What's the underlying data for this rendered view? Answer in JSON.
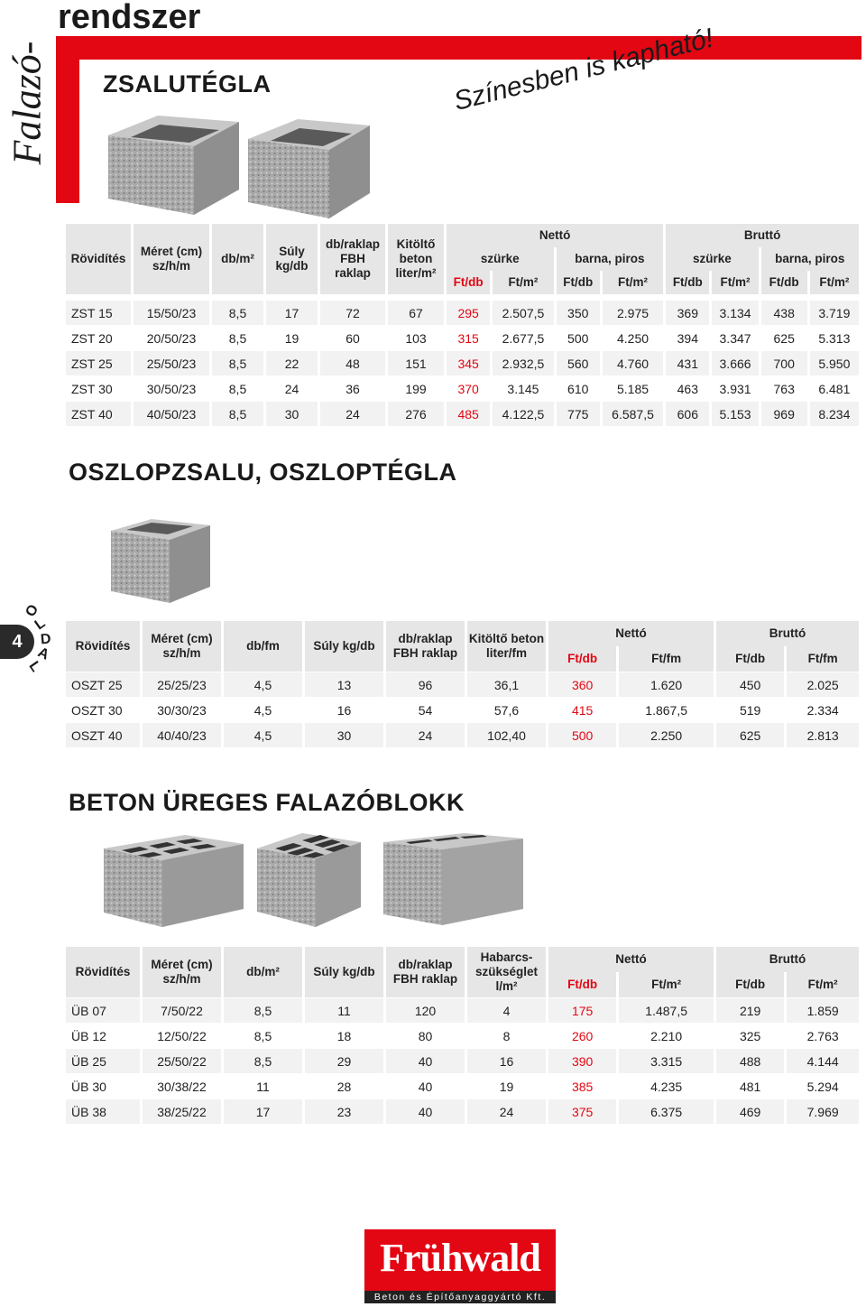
{
  "header": {
    "side_title": "Falazó-",
    "title": "rendszer",
    "section1_title": "ZSALUTÉGLA",
    "slogan": "Színesben is kapható!"
  },
  "page_badge": {
    "number": "4",
    "label": [
      "O",
      "L",
      "D",
      "A",
      "L"
    ]
  },
  "zst": {
    "headers": {
      "abbr": "Rövidítés",
      "size": "Méret (cm) sz/h/m",
      "db_m2": "db/m²",
      "weight": "Súly kg/db",
      "pallet": "db/raklap FBH raklap",
      "fill": "Kitöltő beton liter/m²",
      "netto": "Nettó",
      "brutto": "Bruttó",
      "grey": "szürke",
      "brown": "barna, piros",
      "ftdb": "Ft/db",
      "ftm2": "Ft/m²"
    },
    "rows": [
      [
        "ZST 15",
        "15/50/23",
        "8,5",
        "17",
        "72",
        "67",
        "295",
        "2.507,5",
        "350",
        "2.975",
        "369",
        "3.134",
        "438",
        "3.719"
      ],
      [
        "ZST 20",
        "20/50/23",
        "8,5",
        "19",
        "60",
        "103",
        "315",
        "2.677,5",
        "500",
        "4.250",
        "394",
        "3.347",
        "625",
        "5.313"
      ],
      [
        "ZST 25",
        "25/50/23",
        "8,5",
        "22",
        "48",
        "151",
        "345",
        "2.932,5",
        "560",
        "4.760",
        "431",
        "3.666",
        "700",
        "5.950"
      ],
      [
        "ZST 30",
        "30/50/23",
        "8,5",
        "24",
        "36",
        "199",
        "370",
        "3.145",
        "610",
        "5.185",
        "463",
        "3.931",
        "763",
        "6.481"
      ],
      [
        "ZST 40",
        "40/50/23",
        "8,5",
        "30",
        "24",
        "276",
        "485",
        "4.122,5",
        "775",
        "6.587,5",
        "606",
        "5.153",
        "969",
        "8.234"
      ]
    ]
  },
  "oszt": {
    "title": "OSZLOPZSALU, OSZLOPTÉGLA",
    "headers": {
      "abbr": "Rövidítés",
      "size": "Méret (cm) sz/h/m",
      "db_fm": "db/fm",
      "weight": "Súly kg/db",
      "pallet": "db/raklap FBH raklap",
      "fill": "Kitöltő beton liter/fm",
      "netto": "Nettó",
      "brutto": "Bruttó",
      "ftdb": "Ft/db",
      "ftfm": "Ft/fm"
    },
    "rows": [
      [
        "OSZT 25",
        "25/25/23",
        "4,5",
        "13",
        "96",
        "36,1",
        "360",
        "1.620",
        "450",
        "2.025"
      ],
      [
        "OSZT 30",
        "30/30/23",
        "4,5",
        "16",
        "54",
        "57,6",
        "415",
        "1.867,5",
        "519",
        "2.334"
      ],
      [
        "OSZT 40",
        "40/40/23",
        "4,5",
        "30",
        "24",
        "102,40",
        "500",
        "2.250",
        "625",
        "2.813"
      ]
    ]
  },
  "ub": {
    "title": "BETON ÜREGES FALAZÓBLOKK",
    "headers": {
      "abbr": "Rövidítés",
      "size": "Méret (cm) sz/h/m",
      "db_m2": "db/m²",
      "weight": "Súly kg/db",
      "pallet": "db/raklap FBH raklap",
      "mortar": "Habarcs- szükséglet l/m²",
      "netto": "Nettó",
      "brutto": "Bruttó",
      "ftdb": "Ft/db",
      "ftm2": "Ft/m²"
    },
    "rows": [
      [
        "ÜB 07",
        "7/50/22",
        "8,5",
        "11",
        "120",
        "4",
        "175",
        "1.487,5",
        "219",
        "1.859"
      ],
      [
        "ÜB 12",
        "12/50/22",
        "8,5",
        "18",
        "80",
        "8",
        "260",
        "2.210",
        "325",
        "2.763"
      ],
      [
        "ÜB 25",
        "25/50/22",
        "8,5",
        "29",
        "40",
        "16",
        "390",
        "3.315",
        "488",
        "4.144"
      ],
      [
        "ÜB 30",
        "30/38/22",
        "11",
        "28",
        "40",
        "19",
        "385",
        "4.235",
        "481",
        "5.294"
      ],
      [
        "ÜB 38",
        "38/25/22",
        "17",
        "23",
        "40",
        "24",
        "375",
        "6.375",
        "469",
        "7.969"
      ]
    ]
  },
  "logo": {
    "name": "Frühwald",
    "tagline": "Beton és Építőanyaggyártó Kft."
  },
  "colors": {
    "accent": "#e30613",
    "row_shade": "#f2f2f2",
    "header_shade": "#e6e6e6"
  }
}
